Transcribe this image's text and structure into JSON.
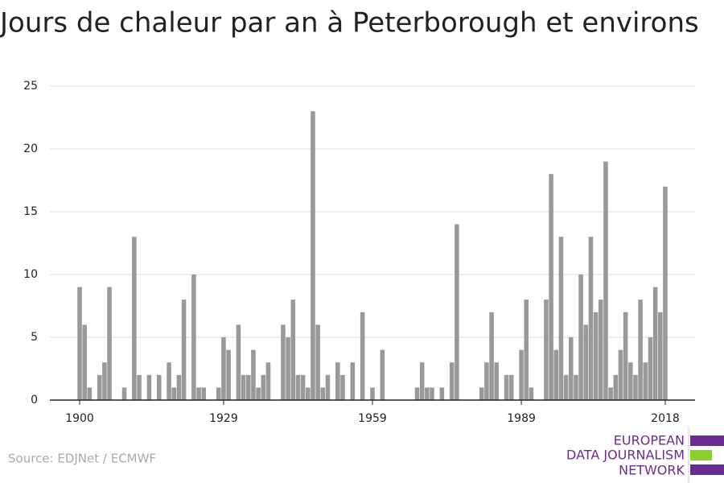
{
  "chart_data": {
    "type": "bar",
    "title": "Jours de chaleur par an à Peterborough et environs",
    "x": [
      1900,
      1901,
      1902,
      1903,
      1904,
      1905,
      1906,
      1907,
      1908,
      1909,
      1910,
      1911,
      1912,
      1913,
      1914,
      1915,
      1916,
      1917,
      1918,
      1919,
      1920,
      1921,
      1922,
      1923,
      1924,
      1925,
      1926,
      1927,
      1928,
      1929,
      1930,
      1931,
      1932,
      1933,
      1934,
      1935,
      1936,
      1937,
      1938,
      1939,
      1940,
      1941,
      1942,
      1943,
      1944,
      1945,
      1946,
      1947,
      1948,
      1949,
      1950,
      1951,
      1952,
      1953,
      1954,
      1955,
      1956,
      1957,
      1958,
      1959,
      1960,
      1961,
      1962,
      1963,
      1964,
      1965,
      1966,
      1967,
      1968,
      1969,
      1970,
      1971,
      1972,
      1973,
      1974,
      1975,
      1976,
      1977,
      1978,
      1979,
      1980,
      1981,
      1982,
      1983,
      1984,
      1985,
      1986,
      1987,
      1988,
      1989,
      1990,
      1991,
      1992,
      1993,
      1994,
      1995,
      1996,
      1997,
      1998,
      1999,
      2000,
      2001,
      2002,
      2003,
      2004,
      2005,
      2006,
      2007,
      2008,
      2009,
      2010,
      2011,
      2012,
      2013,
      2014,
      2015,
      2016,
      2017,
      2018
    ],
    "values": [
      9,
      6,
      1,
      0,
      2,
      3,
      9,
      0,
      0,
      1,
      0,
      13,
      2,
      0,
      2,
      0,
      2,
      0,
      3,
      1,
      2,
      8,
      0,
      10,
      1,
      1,
      0,
      0,
      1,
      5,
      4,
      0,
      6,
      2,
      2,
      4,
      1,
      2,
      3,
      0,
      0,
      6,
      5,
      8,
      2,
      2,
      1,
      23,
      6,
      1,
      2,
      0,
      3,
      2,
      0,
      3,
      0,
      7,
      0,
      1,
      0,
      4,
      0,
      0,
      0,
      0,
      0,
      0,
      1,
      3,
      1,
      1,
      0,
      1,
      0,
      3,
      14,
      0,
      0,
      0,
      0,
      1,
      3,
      7,
      3,
      0,
      2,
      2,
      0,
      4,
      8,
      1,
      0,
      0,
      8,
      18,
      4,
      13,
      2,
      5,
      2,
      10,
      6,
      13,
      7,
      8,
      19,
      1,
      2,
      4,
      7,
      3,
      2,
      8,
      3,
      5,
      9,
      7,
      17
    ],
    "color": "#999999",
    "xlim": [
      1894,
      2024
    ],
    "xticks": [
      1900,
      1929,
      1959,
      1989,
      2018
    ],
    "ylim": [
      0,
      25
    ],
    "yticks": [
      0,
      5,
      10,
      15,
      20,
      25
    ],
    "grid": true
  },
  "footer": {
    "source": "Source: EDJNet / ECMWF",
    "logo": [
      "EUROPEAN",
      "DATA JOURNALISM",
      "NETWORK"
    ]
  }
}
